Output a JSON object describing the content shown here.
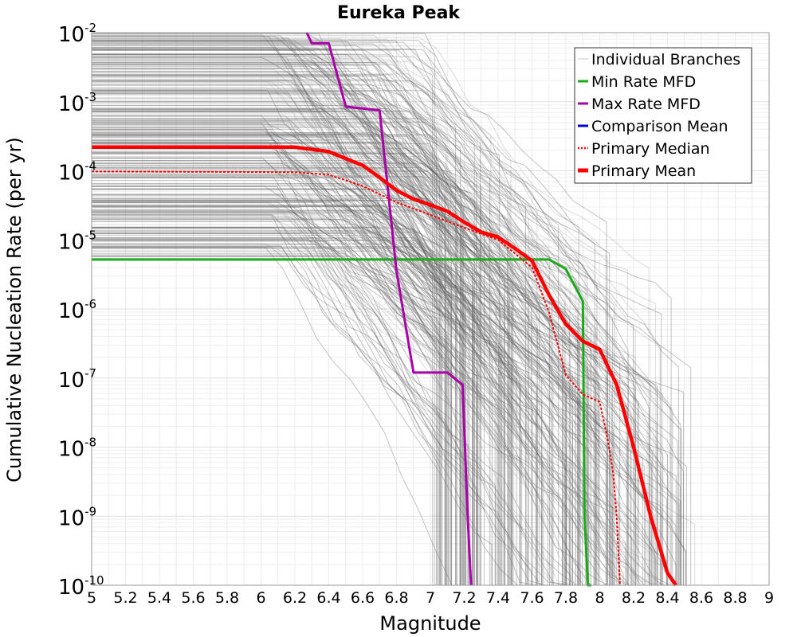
{
  "chart_data": {
    "type": "line",
    "title": "Eureka Peak",
    "xlabel": "Magnitude",
    "ylabel": "Cumulative Nucleation Rate (per yr)",
    "xlim": [
      5,
      9
    ],
    "ylim": [
      1e-10,
      0.01
    ],
    "yscale": "log",
    "grid": true,
    "legend_position": "top-right",
    "x_ticks": [
      5,
      5.2,
      5.4,
      5.6,
      5.8,
      6,
      6.2,
      6.4,
      6.6,
      6.8,
      7,
      7.2,
      7.4,
      7.6,
      7.8,
      8,
      8.2,
      8.4,
      8.6,
      8.8,
      9
    ],
    "x_tick_labels": [
      "5",
      "5.2",
      "5.4",
      "5.6",
      "5.8",
      "6",
      "6.2",
      "6.4",
      "6.6",
      "6.8",
      "7",
      "7.2",
      "7.4",
      "7.6",
      "7.8",
      "8",
      "8.2",
      "8.4",
      "8.6",
      "8.8",
      "9"
    ],
    "y_ticks": [
      {
        "value": 0.01,
        "base": "10",
        "exp": "-2"
      },
      {
        "value": 0.001,
        "base": "10",
        "exp": "-3"
      },
      {
        "value": 0.0001,
        "base": "10",
        "exp": "-4"
      },
      {
        "value": 1e-05,
        "base": "10",
        "exp": "-5"
      },
      {
        "value": 1e-06,
        "base": "10",
        "exp": "-6"
      },
      {
        "value": 1e-07,
        "base": "10",
        "exp": "-7"
      },
      {
        "value": 1e-08,
        "base": "10",
        "exp": "-8"
      },
      {
        "value": 1e-09,
        "base": "10",
        "exp": "-9"
      },
      {
        "value": 1e-10,
        "base": "10",
        "exp": "-10"
      }
    ],
    "legend": [
      {
        "label": "Individual Branches",
        "color": "#c8c8c8",
        "style": "thin"
      },
      {
        "label": "Min Rate MFD",
        "color": "#1aaa1a",
        "style": "solid"
      },
      {
        "label": "Max Rate MFD",
        "color": "#aa00aa",
        "style": "solid"
      },
      {
        "label": "Comparison Mean",
        "color": "#0000cc",
        "style": "solid"
      },
      {
        "label": " Primary Median",
        "color": "#ff0000",
        "style": "dotted"
      },
      {
        "label": "Primary Mean",
        "color": "#ff0000",
        "style": "thick"
      }
    ],
    "series": [
      {
        "name": "Min Rate MFD",
        "color": "#1aaa1a",
        "x": [
          5.0,
          6.0,
          7.0,
          7.5,
          7.7,
          7.8,
          7.85,
          7.9,
          7.905,
          7.91,
          7.93,
          7.95
        ],
        "y": [
          5.2e-06,
          5.2e-06,
          5.2e-06,
          5.2e-06,
          5.2e-06,
          3.8e-06,
          2.2e-06,
          1.3e-06,
          4e-08,
          1e-09,
          1e-10,
          1e-10
        ]
      },
      {
        "name": "Max Rate MFD",
        "color": "#aa00aa",
        "x": [
          6.27,
          6.3,
          6.4,
          6.5,
          6.6,
          6.7,
          6.8,
          6.9,
          7.1,
          7.19,
          7.22,
          7.24
        ],
        "y": [
          0.01,
          0.007,
          0.007,
          0.00085,
          0.0008,
          0.00075,
          3.5e-06,
          1.2e-07,
          1.2e-07,
          8e-08,
          1e-09,
          1e-10
        ]
      },
      {
        "name": "Primary Median",
        "color": "#ff0000",
        "x": [
          5.0,
          6.0,
          6.2,
          6.4,
          6.6,
          6.8,
          7.0,
          7.2,
          7.4,
          7.6,
          7.7,
          7.8,
          7.9,
          8.0,
          8.05,
          8.08,
          8.1,
          8.12
        ],
        "y": [
          9.8e-05,
          9.6e-05,
          9.5e-05,
          8.8e-05,
          6e-05,
          3.5e-05,
          2.3e-05,
          1.5e-05,
          1e-05,
          4e-06,
          9e-07,
          1.1e-07,
          5.8e-08,
          4.5e-08,
          1.2e-08,
          4e-09,
          1e-09,
          1e-10
        ]
      },
      {
        "name": "Primary Mean",
        "color": "#ff0000",
        "x": [
          5.0,
          6.0,
          6.2,
          6.4,
          6.5,
          6.6,
          6.7,
          6.8,
          6.9,
          7.0,
          7.1,
          7.2,
          7.3,
          7.4,
          7.5,
          7.6,
          7.7,
          7.8,
          7.9,
          8.0,
          8.1,
          8.2,
          8.3,
          8.4,
          8.45
        ],
        "y": [
          0.00022,
          0.00022,
          0.00022,
          0.00019,
          0.00015,
          0.00012,
          8e-05,
          5.2e-05,
          3.9e-05,
          3.2e-05,
          2.6e-05,
          1.8e-05,
          1.3e-05,
          1.1e-05,
          7.5e-06,
          5e-06,
          1.6e-06,
          6e-07,
          3.4e-07,
          2.6e-07,
          8e-08,
          1e-08,
          1e-09,
          1.5e-10,
          1e-10
        ]
      }
    ]
  }
}
